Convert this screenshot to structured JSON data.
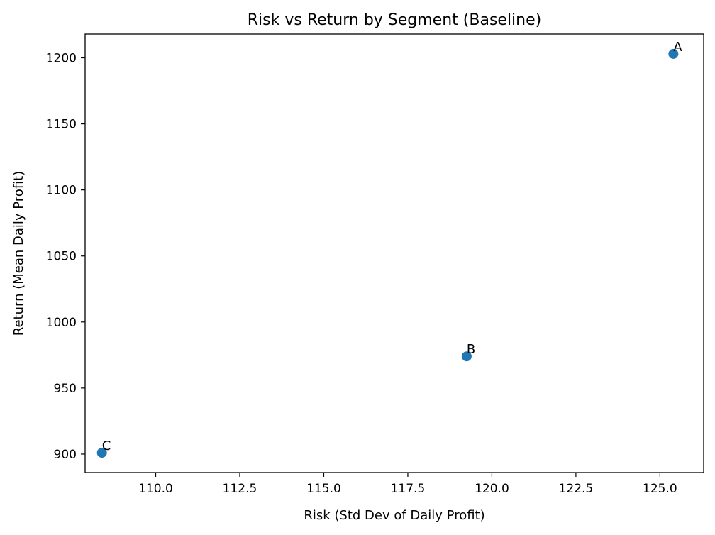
{
  "chart_data": {
    "type": "scatter",
    "title": "Risk vs Return by Segment (Baseline)",
    "xlabel": "Risk (Std Dev of Daily Profit)",
    "ylabel": "Return (Mean Daily Profit)",
    "xlim": [
      107.9,
      126.3
    ],
    "ylim": [
      886,
      1218
    ],
    "xticks": [
      110.0,
      112.5,
      115.0,
      117.5,
      120.0,
      122.5,
      125.0
    ],
    "xtick_labels": [
      "110.0",
      "112.5",
      "115.0",
      "117.5",
      "120.0",
      "122.5",
      "125.0"
    ],
    "yticks": [
      900,
      950,
      1000,
      1050,
      1100,
      1150,
      1200
    ],
    "ytick_labels": [
      "900",
      "950",
      "1000",
      "1050",
      "1100",
      "1150",
      "1200"
    ],
    "grid": false,
    "point_color": "#1f77b4",
    "points": [
      {
        "label": "A",
        "x": 125.4,
        "y": 1203
      },
      {
        "label": "B",
        "x": 119.25,
        "y": 974
      },
      {
        "label": "C",
        "x": 108.4,
        "y": 901
      }
    ]
  }
}
